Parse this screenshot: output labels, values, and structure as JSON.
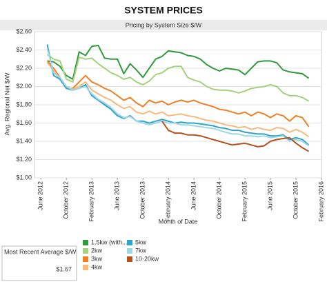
{
  "chart_data": {
    "type": "line",
    "title": "SYSTEM PRICES",
    "subtitle": "Pricing by System Size $/W",
    "x_label": "Month of Date",
    "y_label": "Avg. Regional Net $/W",
    "x": [
      "2012-07",
      "2012-08",
      "2012-09",
      "2012-10",
      "2012-11",
      "2012-12",
      "2013-01",
      "2013-02",
      "2013-03",
      "2013-04",
      "2013-05",
      "2013-06",
      "2013-07",
      "2013-08",
      "2013-09",
      "2013-10",
      "2013-11",
      "2013-12",
      "2014-01",
      "2014-02",
      "2014-03",
      "2014-04",
      "2014-05",
      "2014-06",
      "2014-07",
      "2014-08",
      "2014-09",
      "2014-10",
      "2014-11",
      "2014-12",
      "2015-01",
      "2015-02",
      "2015-03",
      "2015-04",
      "2015-05",
      "2015-06",
      "2015-07",
      "2015-08",
      "2015-09",
      "2015-10",
      "2015-11",
      "2015-12"
    ],
    "xlim": [
      "2012-05",
      "2016-02"
    ],
    "xticks": [
      {
        "value": "2012-06",
        "label": "June 2012"
      },
      {
        "value": "2012-10",
        "label": "October 2012"
      },
      {
        "value": "2013-02",
        "label": "February 2013"
      },
      {
        "value": "2013-06",
        "label": "June 2013"
      },
      {
        "value": "2013-10",
        "label": "October 2013"
      },
      {
        "value": "2014-02",
        "label": "February 2014"
      },
      {
        "value": "2014-06",
        "label": "June 2014"
      },
      {
        "value": "2014-10",
        "label": "October 2014"
      },
      {
        "value": "2015-02",
        "label": "February 2015"
      },
      {
        "value": "2015-06",
        "label": "June 2015"
      },
      {
        "value": "2015-10",
        "label": "October 2015"
      },
      {
        "value": "2016-02",
        "label": "February 2016"
      }
    ],
    "ylim": [
      1.0,
      2.6
    ],
    "yticks": [
      {
        "value": 1.0,
        "label": "$1.00"
      },
      {
        "value": 1.2,
        "label": "$1.20"
      },
      {
        "value": 1.4,
        "label": "$1.40"
      },
      {
        "value": 1.6,
        "label": "$1.60"
      },
      {
        "value": 1.8,
        "label": "$1.80"
      },
      {
        "value": 2.0,
        "label": "$2.00"
      },
      {
        "value": 2.2,
        "label": "$2.20"
      },
      {
        "value": 2.4,
        "label": "$2.40"
      },
      {
        "value": 2.6,
        "label": "$2.60"
      }
    ],
    "grid": true,
    "series": [
      {
        "name": "1.5kw (with...",
        "color": "#2e9a3a",
        "values": [
          2.28,
          2.27,
          2.22,
          2.12,
          2.08,
          2.38,
          2.34,
          2.44,
          2.45,
          2.31,
          2.3,
          2.3,
          2.14,
          2.25,
          2.18,
          2.1,
          2.2,
          2.3,
          2.33,
          2.39,
          2.38,
          2.37,
          2.34,
          2.33,
          2.3,
          2.24,
          2.2,
          2.17,
          2.2,
          2.19,
          2.18,
          2.13,
          2.2,
          2.27,
          2.28,
          2.28,
          2.26,
          2.18,
          2.16,
          2.15,
          2.14,
          2.09
        ]
      },
      {
        "name": "2kw",
        "color": "#a3d27c",
        "values": [
          2.35,
          2.3,
          2.28,
          2.08,
          2.05,
          2.32,
          2.3,
          2.31,
          2.25,
          2.2,
          2.15,
          2.12,
          2.08,
          2.1,
          2.05,
          2.02,
          2.06,
          2.13,
          2.15,
          2.2,
          2.22,
          2.22,
          2.1,
          2.07,
          2.05,
          2.0,
          1.97,
          1.96,
          1.96,
          1.95,
          1.93,
          1.95,
          1.98,
          1.99,
          2.0,
          2.02,
          2.0,
          1.93,
          1.9,
          1.9,
          1.88,
          1.84
        ]
      },
      {
        "name": "3kw",
        "color": "#f07f22",
        "values": [
          2.28,
          2.2,
          2.1,
          1.98,
          1.98,
          2.05,
          2.12,
          2.05,
          2.02,
          1.98,
          1.95,
          1.9,
          1.85,
          1.88,
          1.82,
          1.78,
          1.85,
          1.82,
          1.84,
          1.8,
          1.83,
          1.85,
          1.83,
          1.85,
          1.82,
          1.8,
          1.78,
          1.75,
          1.74,
          1.72,
          1.7,
          1.72,
          1.68,
          1.72,
          1.7,
          1.66,
          1.7,
          1.68,
          1.62,
          1.68,
          1.66,
          1.56
        ]
      },
      {
        "name": "4kw",
        "color": "#f9b97a",
        "values": [
          2.26,
          2.18,
          2.08,
          2.0,
          1.97,
          2.0,
          2.05,
          1.96,
          1.92,
          1.88,
          1.85,
          1.8,
          1.76,
          1.78,
          1.72,
          1.7,
          1.73,
          1.7,
          1.72,
          1.68,
          1.69,
          1.7,
          1.68,
          1.67,
          1.65,
          1.63,
          1.62,
          1.6,
          1.58,
          1.57,
          1.55,
          1.56,
          1.53,
          1.55,
          1.53,
          1.52,
          1.55,
          1.54,
          1.5,
          1.53,
          1.5,
          1.45
        ]
      },
      {
        "name": "5kw",
        "color": "#2ea4c8",
        "values": [
          2.46,
          2.12,
          2.08,
          1.98,
          1.96,
          1.98,
          2.02,
          1.9,
          1.85,
          1.8,
          1.75,
          1.68,
          1.65,
          1.68,
          1.62,
          1.62,
          1.6,
          1.62,
          1.64,
          1.62,
          1.6,
          1.61,
          1.6,
          1.6,
          1.59,
          1.58,
          1.57,
          1.55,
          1.54,
          1.52,
          1.52,
          1.5,
          1.49,
          1.48,
          1.48,
          1.46,
          1.46,
          1.47,
          1.42,
          1.44,
          1.42,
          1.36
        ]
      },
      {
        "name": "7kw",
        "color": "#9fd6e6",
        "values": [
          2.42,
          2.15,
          2.1,
          2.0,
          1.96,
          1.98,
          2.0,
          1.92,
          1.86,
          1.82,
          1.77,
          1.7,
          1.66,
          1.67,
          1.62,
          1.6,
          1.58,
          1.6,
          1.62,
          1.6,
          1.6,
          1.58,
          1.58,
          1.57,
          1.56,
          1.55,
          1.54,
          1.52,
          1.5,
          1.48,
          1.48,
          1.46,
          1.46,
          1.45,
          1.46,
          1.44,
          1.45,
          1.46,
          1.4,
          1.42,
          1.4,
          1.35
        ]
      },
      {
        "name": "10-20kw",
        "color": "#b5501c",
        "values": [
          null,
          null,
          null,
          null,
          null,
          null,
          null,
          null,
          null,
          null,
          null,
          null,
          null,
          null,
          null,
          null,
          null,
          null,
          1.62,
          1.52,
          1.49,
          1.49,
          1.47,
          1.47,
          1.46,
          1.44,
          1.42,
          1.4,
          1.38,
          1.36,
          1.37,
          1.38,
          1.36,
          1.34,
          1.35,
          1.4,
          1.42,
          1.43,
          1.44,
          1.38,
          1.33,
          1.29
        ]
      }
    ],
    "kpi": {
      "label": "Most Recent Average $/W",
      "value": "$1.67"
    }
  }
}
